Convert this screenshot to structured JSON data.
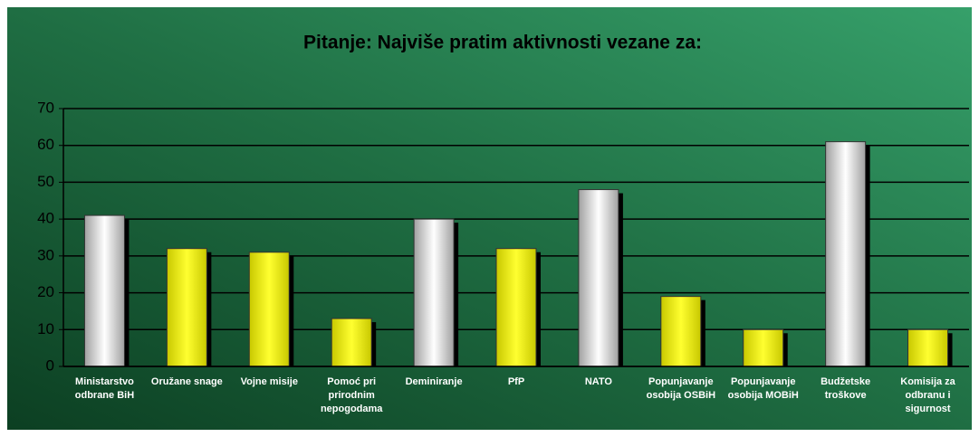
{
  "chart_data": {
    "type": "bar",
    "title": "Pitanje: Najviše pratim aktivnosti vezane za:",
    "categories": [
      "Ministarstvo odbrane BiH",
      "Oružane snage",
      "Vojne misije",
      "Pomoć pri prirodnim nepogodama",
      "Deminiranje",
      "PfP",
      "NATO",
      "Popunjavanje osobija OSBiH",
      "Popunjavanje osobija MOBiH",
      "Budžetske troškove",
      "Komisija za odbranu i sigurnost"
    ],
    "values": [
      41,
      32,
      31,
      13,
      40,
      32,
      48,
      19,
      10,
      61,
      10
    ],
    "colors": [
      "#a0a0a0",
      "#c8c800",
      "#c8c800",
      "#c8c800",
      "#a0a0a0",
      "#c8c800",
      "#a0a0a0",
      "#c8c800",
      "#c8c800",
      "#a0a0a0",
      "#c8c800"
    ],
    "ylim": [
      0,
      70
    ],
    "yticks": [
      0,
      10,
      20,
      30,
      40,
      50,
      60,
      70
    ],
    "grid": true
  }
}
